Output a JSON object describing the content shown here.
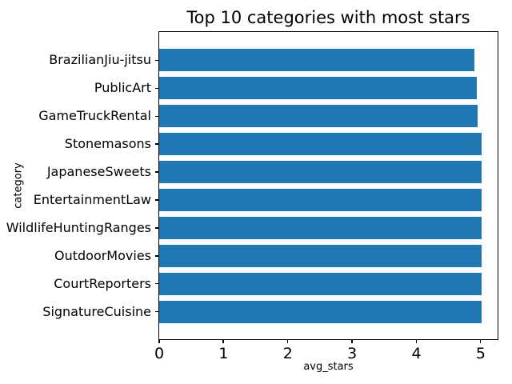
{
  "chart_data": {
    "type": "bar",
    "orientation": "horizontal",
    "title": "Top 10 categories with most stars",
    "xlabel": "avg_stars",
    "ylabel": "category",
    "categories": [
      "BrazilianJiu-jitsu",
      "PublicArt",
      "GameTruckRental",
      "Stonemasons",
      "JapaneseSweets",
      "EntertainmentLaw",
      "WildlifeHuntingRanges",
      "OutdoorMovies",
      "CourtReporters",
      "SignatureCuisine"
    ],
    "values": [
      4.89,
      4.93,
      4.94,
      5.0,
      5.0,
      5.0,
      5.0,
      5.0,
      5.0,
      5.0
    ],
    "x_ticks": [
      0,
      1,
      2,
      3,
      4,
      5
    ],
    "xlim": [
      0,
      5.25
    ],
    "bar_color": "#1f77b4",
    "text_color": "#000000",
    "grid": false,
    "legend": false
  }
}
